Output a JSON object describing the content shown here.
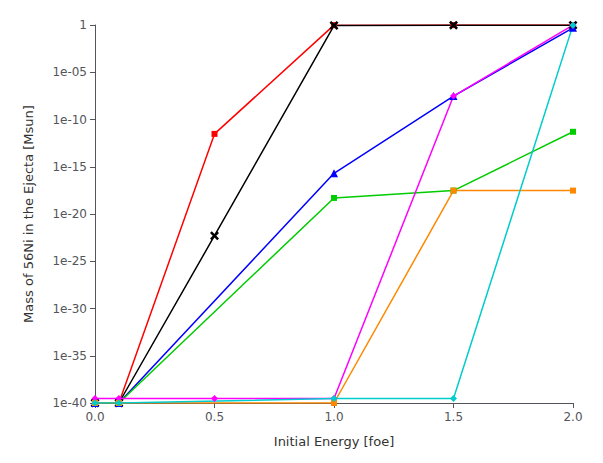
{
  "chart_data": {
    "type": "line",
    "xlabel": "Initial Energy [foe]",
    "ylabel": "Mass of 56Ni in the Ejecta [Msun]",
    "log": "y",
    "grid": false,
    "xlim": [
      0,
      2
    ],
    "ylim": [
      1e-40,
      1
    ],
    "xticks": [
      {
        "value": 0,
        "label": "0.0"
      },
      0.5,
      {
        "value": 1,
        "label": "1.0"
      },
      1.5,
      {
        "value": 2,
        "label": "2.0"
      }
    ],
    "yticks": [
      {
        "value": 1e-40,
        "label": "1e-40"
      },
      {
        "value": 1e-35,
        "label": "1e-35"
      },
      {
        "value": 1e-30,
        "label": "1e-30"
      },
      {
        "value": 1e-25,
        "label": "1e-25"
      },
      {
        "value": 1e-20,
        "label": "1e-20"
      },
      {
        "value": 1e-15,
        "label": "1e-15"
      },
      {
        "value": 1e-10,
        "label": "1e-10"
      },
      {
        "value": 1e-05,
        "label": "1e-05"
      },
      1
    ],
    "series": [
      {
        "color": "#ff0000",
        "marker": "square",
        "x": [
          0,
          0.1,
          0.5,
          1.0,
          1.5,
          2.0
        ],
        "values": [
          1e-40,
          1e-40,
          3e-12,
          0.97,
          0.98,
          0.99
        ]
      },
      {
        "color": "#000000",
        "marker": "x",
        "x": [
          0,
          0.1,
          0.5,
          1.0,
          1.5,
          2.0
        ],
        "values": [
          1e-40,
          1e-40,
          5e-23,
          0.87,
          0.96,
          0.97
        ]
      },
      {
        "color": "#0000ff",
        "marker": "triangle",
        "x": [
          0,
          0.1,
          1.0,
          1.5,
          2.0
        ],
        "values": [
          1e-40,
          1e-40,
          2e-16,
          3e-08,
          0.5
        ]
      },
      {
        "color": "#00cc00",
        "marker": "square",
        "x": [
          0,
          0.1,
          1.0,
          1.5,
          2.0
        ],
        "values": [
          1e-40,
          1e-40,
          5e-19,
          3e-18,
          5e-12
        ]
      },
      {
        "color": "#ff00ff",
        "marker": "diamond",
        "x": [
          0,
          0.1,
          0.5,
          1.0,
          1.5,
          2.0
        ],
        "values": [
          3e-40,
          3e-40,
          3e-40,
          3e-40,
          3e-08,
          0.97
        ]
      },
      {
        "color": "#ff8800",
        "marker": "square",
        "x": [
          0,
          0.1,
          1.0,
          1.5,
          2.0
        ],
        "values": [
          1e-40,
          1e-40,
          1e-40,
          3e-18,
          3e-18
        ]
      },
      {
        "color": "#00cccc",
        "marker": "diamond",
        "x": [
          0,
          0.1,
          1.0,
          1.5,
          2.0
        ],
        "values": [
          1e-40,
          1e-40,
          3e-40,
          3e-40,
          0.97
        ]
      }
    ]
  }
}
